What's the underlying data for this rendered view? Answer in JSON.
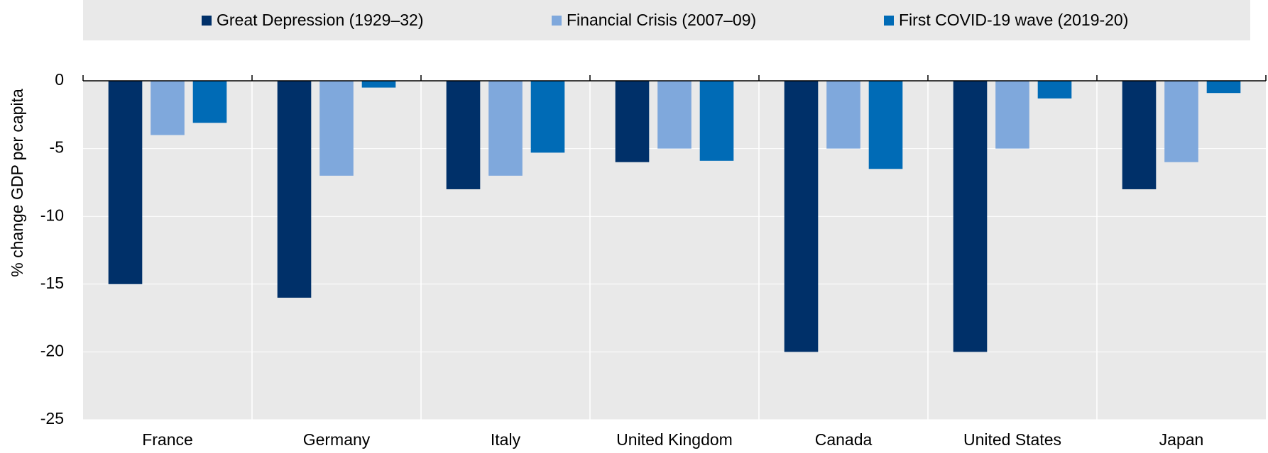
{
  "chart_data": {
    "type": "bar",
    "y_label": "% change GDP per capita",
    "categories": [
      "France",
      "Germany",
      "Italy",
      "United Kingdom",
      "Canada",
      "United States",
      "Japan"
    ],
    "series": [
      {
        "name": "Great Depression (1929–32)",
        "color": "#003069",
        "values": [
          -15,
          -16,
          -8,
          -6,
          -20,
          -20,
          -8
        ]
      },
      {
        "name": "Financial Crisis (2007–09)",
        "color": "#7fa8dc",
        "values": [
          -4,
          -7,
          -7,
          -5,
          -5,
          -5,
          -6
        ]
      },
      {
        "name": "First COVID-19 wave (2019-20)",
        "color": "#006bb6",
        "values": [
          -3.1,
          -0.5,
          -5.3,
          -5.9,
          -6.5,
          -1.3,
          -0.9
        ]
      }
    ],
    "ylim": [
      -25,
      0
    ],
    "yticks": [
      0,
      -5,
      -10,
      -15,
      -20,
      -25
    ],
    "grid": true,
    "legend": "top"
  }
}
